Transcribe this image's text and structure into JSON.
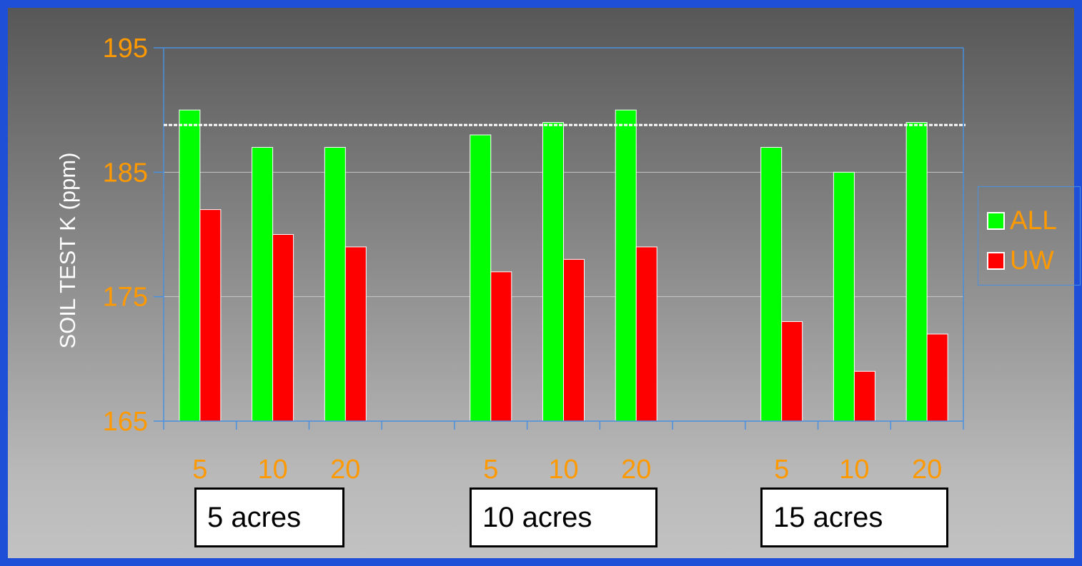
{
  "chart_data": {
    "type": "bar",
    "ylabel": "SOIL TEST K (ppm)",
    "ylim": [
      165,
      195
    ],
    "yticks": [
      "165",
      "175",
      "185",
      "195"
    ],
    "grid": true,
    "reference_line": {
      "value": 188.8,
      "style": "dashed",
      "color": "#ffffff"
    },
    "groups": [
      {
        "label": "5 acres",
        "categories": [
          "5",
          "10",
          "20"
        ]
      },
      {
        "label": "10 acres",
        "categories": [
          "5",
          "10",
          "20"
        ]
      },
      {
        "label": "15 acres",
        "categories": [
          "5",
          "10",
          "20"
        ]
      }
    ],
    "series": [
      {
        "name": "ALL",
        "color": "#00ff00",
        "values": [
          190,
          187,
          187,
          188,
          189,
          190,
          187,
          185,
          189
        ]
      },
      {
        "name": "UW",
        "color": "#ff0000",
        "values": [
          182,
          180,
          179,
          177,
          178,
          179,
          173,
          169,
          172
        ]
      }
    ],
    "legend_position": "right",
    "colors": {
      "tick_text": "#ff9900",
      "axis": "#4a90e0",
      "gridline": "#c8c8c8"
    }
  }
}
